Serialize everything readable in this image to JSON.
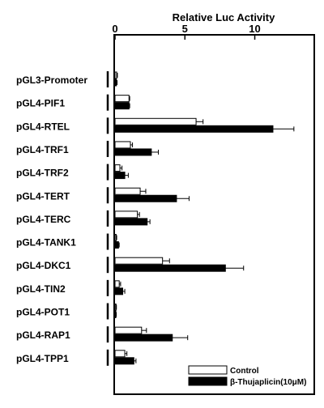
{
  "chart_data": {
    "type": "bar",
    "orientation": "horizontal",
    "title": "Relative Luc Activity",
    "axis_position": "top",
    "xlim": [
      0,
      14.2
    ],
    "xticks": [
      0,
      5,
      10
    ],
    "tick_labels": [
      "0",
      "5",
      "10"
    ],
    "categories": [
      "pGL3-Promoter",
      "pGL4-PIF1",
      "pGL4-RTEL",
      "pGL4-TRF1",
      "pGL4-TRF2",
      "pGL4-TERT",
      "pGL4-TERC",
      "pGL4-TANK1",
      "pGL4-DKC1",
      "pGL4-TIN2",
      "pGL4-POT1",
      "pGL4-RAP1",
      "pGL4-TPP1"
    ],
    "series": [
      {
        "name": "Control",
        "fill": "#ffffff",
        "values": [
          0.12,
          1.0,
          5.8,
          1.1,
          0.35,
          1.8,
          1.6,
          0.08,
          3.4,
          0.3,
          0.07,
          1.9,
          0.7
        ],
        "errors": [
          0.05,
          0.05,
          0.5,
          0.15,
          0.15,
          0.4,
          0.15,
          0.04,
          0.5,
          0.1,
          0.03,
          0.35,
          0.15
        ]
      },
      {
        "name": "β-Thujaplicin(10μM)",
        "fill": "#000000",
        "values": [
          0.1,
          1.0,
          11.3,
          2.6,
          0.7,
          4.4,
          2.3,
          0.25,
          7.9,
          0.55,
          0.06,
          4.1,
          1.35
        ],
        "errors": [
          0.05,
          0.05,
          1.5,
          0.5,
          0.25,
          0.9,
          0.2,
          0.05,
          1.3,
          0.15,
          0.03,
          1.1,
          0.15
        ]
      }
    ],
    "legend_position": "bottom-right",
    "grid": false
  }
}
